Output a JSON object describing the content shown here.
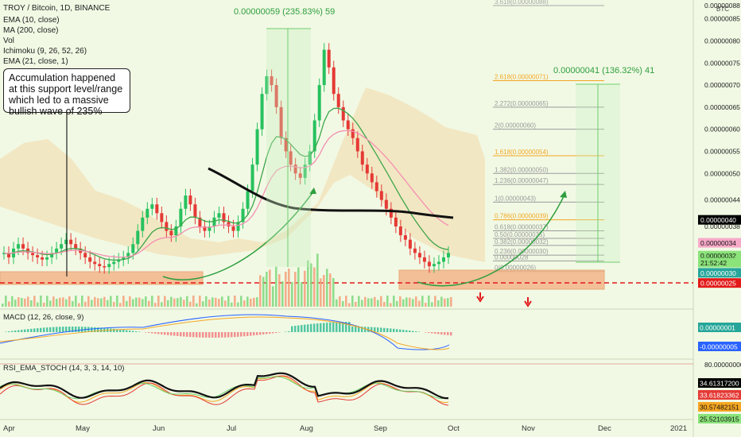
{
  "header": {
    "symbol": "TROY / Bitcoin, 1D, BINANCE",
    "indicators": [
      "EMA (10, close)",
      "MA (200, close)",
      "Vol",
      "Ichimoku (9, 26, 52, 26)",
      "EMA (21, close, 1)"
    ]
  },
  "annotations": {
    "callout": "Accumulation happened at this support level/range which led to a massive bullish wave of 235%",
    "measure1": "0.00000059 (235.83%) 59",
    "measure2": "0.00000041 (136.32%) 41"
  },
  "fib_levels": [
    {
      "label": "3.618(0.00000088)",
      "price": 88,
      "color": "#a8a8a8"
    },
    {
      "label": "2.618(0.00000071)",
      "price": 71,
      "color": "#f5a623"
    },
    {
      "label": "2.272(0.00000065)",
      "price": 65,
      "color": "#9a9a9a"
    },
    {
      "label": "2(0.00000060)",
      "price": 60,
      "color": "#9a9a9a"
    },
    {
      "label": "1.618(0.00000054)",
      "price": 54,
      "color": "#f5a623"
    },
    {
      "label": "1.382(0.00000050)",
      "price": 50,
      "color": "#9a9a9a"
    },
    {
      "label": "1.236(0.00000047)",
      "price": 47.5,
      "color": "#9a9a9a"
    },
    {
      "label": "1(0.00000043)",
      "price": 43.5,
      "color": "#9a9a9a"
    },
    {
      "label": "0.786(0.00000039)",
      "price": 39.5,
      "color": "#f5a623"
    },
    {
      "label": "0.618(0.00000037)",
      "price": 37,
      "color": "#9a9a9a"
    },
    {
      "label": "0.50(0.00000035)",
      "price": 35.3,
      "color": "#9a9a9a"
    },
    {
      "label": "0.382(0.00000032)",
      "price": 33.7,
      "color": "#9a9a9a"
    },
    {
      "label": "0.236(0.00000030)",
      "price": 31.5,
      "color": "#9a9a9a"
    },
    {
      "label": "0.00000028",
      "price": 30.2,
      "color": "#9a9a9a"
    },
    {
      "label": "0(0.00000026)",
      "price": 27.8,
      "color": "#9a9a9a"
    }
  ],
  "price_axis": {
    "unit": "BTC",
    "ticks": [
      "0.00000088",
      "0.00000085",
      "0.00000080",
      "0.00000075",
      "0.00000070",
      "0.00000065",
      "0.00000060",
      "0.00000055",
      "0.00000050",
      "0.00000044",
      "0.00000038"
    ],
    "tick_values": [
      88,
      85,
      80,
      75,
      70,
      65,
      60,
      55,
      50,
      44,
      38
    ],
    "badges": [
      {
        "text": "0.00000040",
        "price": 39.5,
        "bg": "#000000",
        "fg": "#ffffff"
      },
      {
        "text": "0.00000034",
        "price": 34.3,
        "bg": "#f7a9c8",
        "fg": "#111111"
      },
      {
        "text": "0.00000032",
        "price": 31.4,
        "bg": "#8be37a",
        "fg": "#111111"
      },
      {
        "text": "21:52:42",
        "price": 29.8,
        "bg": "#8be37a",
        "fg": "#111111"
      },
      {
        "text": "0.00000030",
        "price": 27.5,
        "bg": "#26a69a",
        "fg": "#ffffff"
      },
      {
        "text": "0.00000025",
        "price": 25.2,
        "bg": "#e31a1a",
        "fg": "#ffffff"
      }
    ]
  },
  "macd": {
    "label": "MACD (12, 26, close, 9)",
    "badges": [
      {
        "text": "0.00000001",
        "bg": "#26a69a",
        "fg": "#ffffff"
      },
      {
        "text": "-0.00000005",
        "bg": "#2962ff",
        "fg": "#ffffff"
      }
    ]
  },
  "rsi": {
    "label": "RSI_EMA_STOCH (14, 3, 3, 14, 10)",
    "axis_top": "80.00000000",
    "badges": [
      {
        "text": "34.61317200",
        "bg": "#000000",
        "fg": "#ffffff"
      },
      {
        "text": "33.61823362",
        "bg": "#e53935",
        "fg": "#ffffff"
      },
      {
        "text": "30.57482151",
        "bg": "#f5a623",
        "fg": "#111111"
      },
      {
        "text": "25.52103915",
        "bg": "#8be37a",
        "fg": "#111111"
      }
    ]
  },
  "time_axis": [
    "Apr",
    "May",
    "Jun",
    "Jul",
    "Aug",
    "Sep",
    "Oct",
    "Nov",
    "Dec",
    "2021"
  ],
  "chart_data": {
    "type": "candlestick",
    "unit_multiplier": "1e-8 BTC",
    "support_zone": [
      25.5,
      28.5
    ],
    "close_series": [
      32,
      31,
      33,
      34,
      33,
      32,
      31.5,
      31,
      30.5,
      31,
      32,
      33,
      34,
      35,
      34,
      33,
      32,
      31,
      30,
      29.5,
      29,
      28.8,
      29.5,
      30,
      30.5,
      31,
      32,
      34,
      37,
      40,
      42,
      43,
      41,
      39,
      37,
      36,
      38,
      42,
      45,
      43,
      40,
      38,
      37,
      38,
      40,
      41,
      39,
      38,
      37,
      39,
      42,
      46,
      52,
      60,
      68,
      72,
      70,
      65,
      58,
      55,
      52,
      50,
      49,
      52,
      55,
      62,
      70,
      78,
      74,
      68,
      65,
      62,
      60,
      58,
      55,
      52,
      50,
      48,
      46,
      44,
      42,
      40,
      38,
      36,
      35,
      33,
      32,
      31,
      30,
      29,
      29.5,
      30,
      31,
      32
    ],
    "curve1": "accumulation-to-rally arc",
    "curve2": "projected reversal arc"
  }
}
